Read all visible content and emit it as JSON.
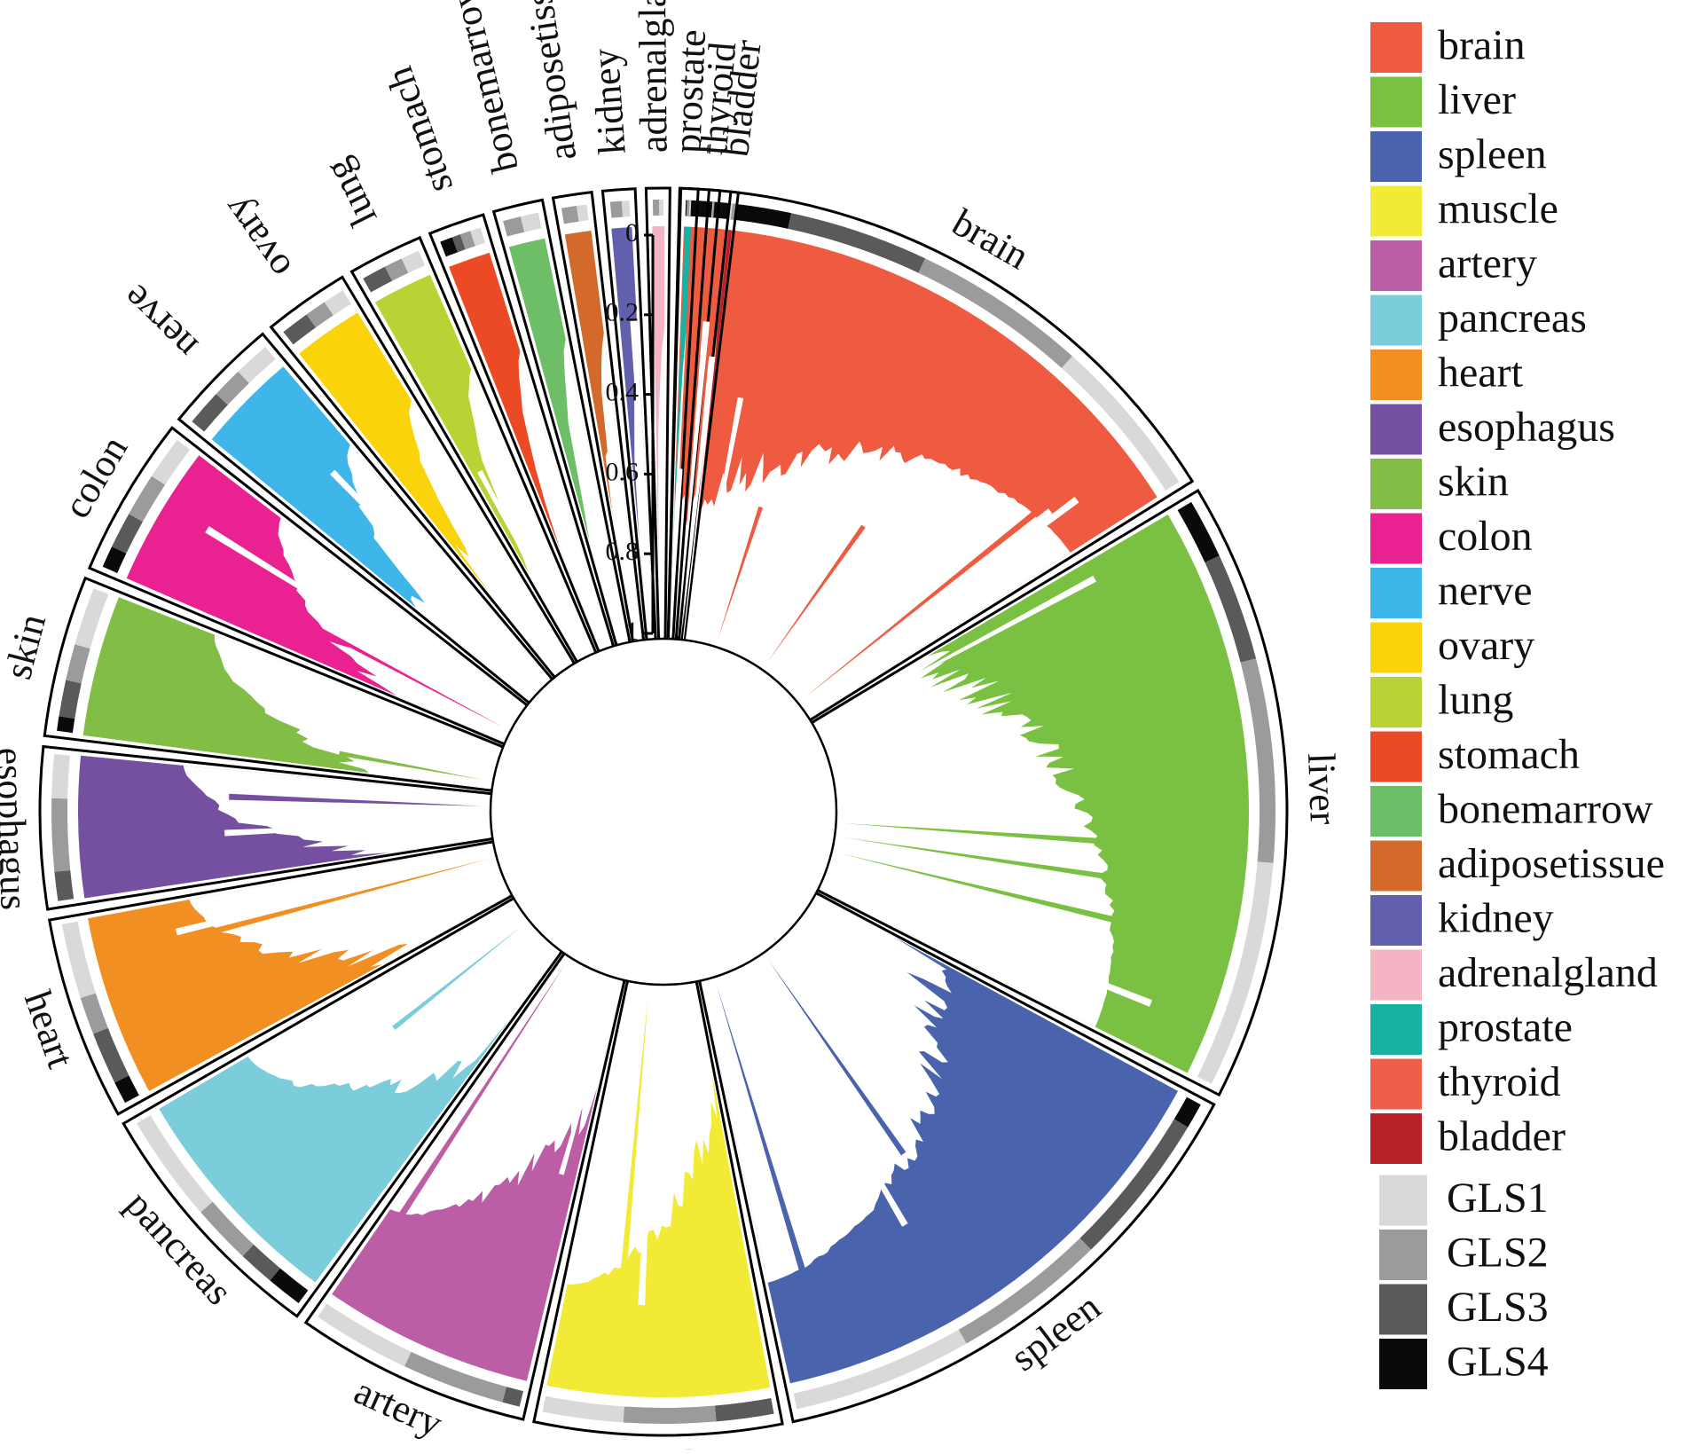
{
  "chart_data": {
    "type": "circular-bar",
    "title": "",
    "ylabel": "",
    "ylim": [
      0,
      1
    ],
    "y_ticks": [
      "0",
      "0.2",
      "0.4",
      "0.6",
      "0.8",
      "1"
    ],
    "legend_position": "right",
    "sectors": [
      {
        "name": "brain",
        "color": "#EE5B40",
        "gls_bands": [
          "GLS4",
          "GLS3",
          "GLS2",
          "GLS1"
        ],
        "band_fracs": [
          0.18,
          0.42,
          0.72
        ]
      },
      {
        "name": "liver",
        "color": "#7AC143",
        "gls_bands": [
          "GLS4",
          "GLS3",
          "GLS2",
          "GLS1"
        ],
        "band_fracs": [
          0.1,
          0.28,
          0.62
        ]
      },
      {
        "name": "spleen",
        "color": "#4963AD",
        "gls_bands": [
          "GLS4",
          "GLS3",
          "GLS2",
          "GLS1"
        ],
        "band_fracs": [
          0.05,
          0.35,
          0.65
        ]
      },
      {
        "name": "muscle",
        "color": "#F2EA35",
        "gls_bands": [
          "GLS3",
          "GLS2",
          "GLS1"
        ],
        "band_fracs": [
          0.25,
          0.65
        ]
      },
      {
        "name": "artery",
        "color": "#BC5EA6",
        "gls_bands": [
          "GLS3",
          "GLS2",
          "GLS1"
        ],
        "band_fracs": [
          0.08,
          0.55
        ]
      },
      {
        "name": "pancreas",
        "color": "#7BCDDC",
        "gls_bands": [
          "GLS4",
          "GLS3",
          "GLS2",
          "GLS1"
        ],
        "band_fracs": [
          0.15,
          0.3,
          0.55
        ]
      },
      {
        "name": "heart",
        "color": "#F18F22",
        "gls_bands": [
          "GLS4",
          "GLS3",
          "GLS2",
          "GLS1"
        ],
        "band_fracs": [
          0.12,
          0.4,
          0.6
        ]
      },
      {
        "name": "esophagus",
        "color": "#7550A1",
        "gls_bands": [
          "GLS3",
          "GLS2",
          "GLS1"
        ],
        "band_fracs": [
          0.2,
          0.7
        ]
      },
      {
        "name": "skin",
        "color": "#82BE45",
        "gls_bands": [
          "GLS4",
          "GLS3",
          "GLS2",
          "GLS1"
        ],
        "band_fracs": [
          0.1,
          0.35,
          0.6
        ]
      },
      {
        "name": "colon",
        "color": "#EA2190",
        "gls_bands": [
          "GLS4",
          "GLS3",
          "GLS2",
          "GLS1"
        ],
        "band_fracs": [
          0.15,
          0.4,
          0.7
        ]
      },
      {
        "name": "nerve",
        "color": "#3EB6E9",
        "gls_bands": [
          "GLS3",
          "GLS2",
          "GLS1"
        ],
        "band_fracs": [
          0.35,
          0.65
        ]
      },
      {
        "name": "ovary",
        "color": "#FBD30B",
        "gls_bands": [
          "GLS3",
          "GLS2",
          "GLS1"
        ],
        "band_fracs": [
          0.4,
          0.7
        ]
      },
      {
        "name": "lung",
        "color": "#B9D334",
        "gls_bands": [
          "GLS3",
          "GLS2",
          "GLS1"
        ],
        "band_fracs": [
          0.4,
          0.7
        ]
      },
      {
        "name": "stomach",
        "color": "#EC4A25",
        "gls_bands": [
          "GLS4",
          "GLS3",
          "GLS2",
          "GLS1"
        ],
        "band_fracs": [
          0.3,
          0.5,
          0.75
        ]
      },
      {
        "name": "bonemarrow",
        "color": "#6EBE68",
        "gls_bands": [
          "GLS2",
          "GLS1"
        ],
        "band_fracs": [
          0.5
        ]
      },
      {
        "name": "adiposetissue",
        "color": "#D3692A",
        "gls_bands": [
          "GLS2",
          "GLS1"
        ],
        "band_fracs": [
          0.6
        ]
      },
      {
        "name": "kidney",
        "color": "#625FAC",
        "gls_bands": [
          "GLS2",
          "GLS1"
        ],
        "band_fracs": [
          0.6
        ]
      },
      {
        "name": "adrenalgland",
        "color": "#F5B4C4",
        "gls_bands": [
          "GLS2",
          "GLS1"
        ],
        "band_fracs": [
          0.6
        ]
      },
      {
        "name": "prostate",
        "color": "#17B2A3",
        "gls_bands": [
          "GLS2",
          "GLS1"
        ],
        "band_fracs": [
          0.6
        ]
      },
      {
        "name": "thyroid",
        "color": "#EE5E4B",
        "gls_bands": [
          "GLS2",
          "GLS1"
        ],
        "band_fracs": [
          0.6
        ]
      },
      {
        "name": "bladder",
        "color": "#B72127",
        "gls_bands": [
          "GLS2",
          "GLS1"
        ],
        "band_fracs": [
          0.6
        ]
      }
    ],
    "legend_gls": [
      {
        "name": "GLS1",
        "color": "#D9D9D9"
      },
      {
        "name": "GLS2",
        "color": "#9B9B9B"
      },
      {
        "name": "GLS3",
        "color": "#5A5A5A"
      },
      {
        "name": "GLS4",
        "color": "#0A0A0A"
      }
    ]
  }
}
